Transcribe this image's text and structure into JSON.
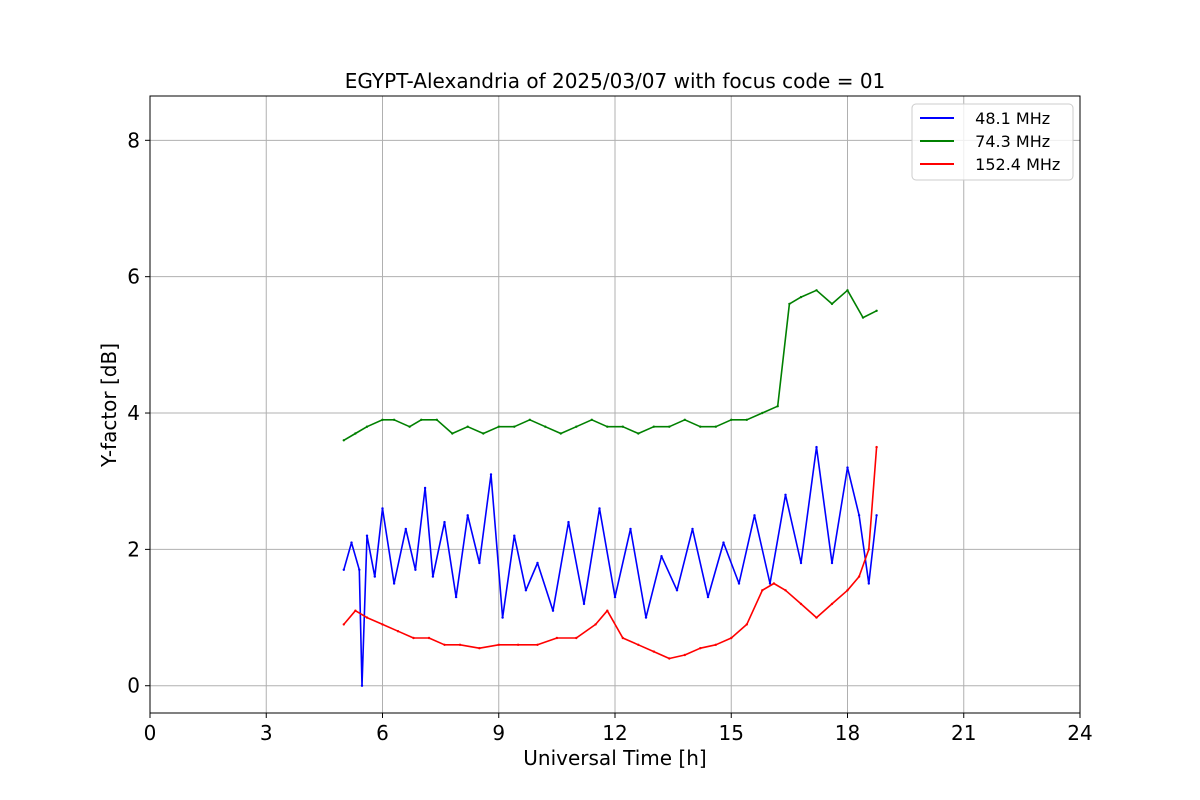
{
  "chart_data": {
    "type": "line",
    "title": "EGYPT-Alexandria of 2025/03/07 with focus code = 01",
    "xlabel": "Universal Time [h]",
    "ylabel": "Y-factor [dB]",
    "xlim": [
      0,
      24
    ],
    "ylim": [
      -0.4,
      8.65
    ],
    "xticks": [
      "0",
      "3",
      "6",
      "9",
      "12",
      "15",
      "18",
      "21",
      "24"
    ],
    "yticks": [
      "0",
      "2",
      "4",
      "6",
      "8"
    ],
    "grid": true,
    "legend_position": "top-right",
    "series": [
      {
        "name": "  48.1 MHz",
        "color": "#0000ff",
        "x": [
          5.0,
          5.2,
          5.4,
          5.47,
          5.6,
          5.8,
          6.0,
          6.3,
          6.6,
          6.85,
          7.1,
          7.3,
          7.6,
          7.9,
          8.2,
          8.5,
          8.8,
          9.1,
          9.4,
          9.7,
          10.0,
          10.4,
          10.8,
          11.2,
          11.6,
          12.0,
          12.4,
          12.8,
          13.2,
          13.6,
          14.0,
          14.4,
          14.8,
          15.2,
          15.6,
          16.0,
          16.4,
          16.8,
          17.2,
          17.6,
          18.0,
          18.3,
          18.55,
          18.75
        ],
        "y": [
          1.7,
          2.1,
          1.7,
          0.0,
          2.2,
          1.6,
          2.6,
          1.5,
          2.3,
          1.7,
          2.9,
          1.6,
          2.4,
          1.3,
          2.5,
          1.8,
          3.1,
          1.0,
          2.2,
          1.4,
          1.8,
          1.1,
          2.4,
          1.2,
          2.6,
          1.3,
          2.3,
          1.0,
          1.9,
          1.4,
          2.3,
          1.3,
          2.1,
          1.5,
          2.5,
          1.5,
          2.8,
          1.8,
          3.5,
          1.8,
          3.2,
          2.5,
          1.5,
          2.5
        ]
      },
      {
        "name": "  74.3 MHz",
        "color": "#008000",
        "x": [
          5.0,
          5.3,
          5.6,
          6.0,
          6.3,
          6.7,
          7.0,
          7.4,
          7.8,
          8.2,
          8.6,
          9.0,
          9.4,
          9.8,
          10.2,
          10.6,
          11.0,
          11.4,
          11.8,
          12.2,
          12.6,
          13.0,
          13.4,
          13.8,
          14.2,
          14.6,
          15.0,
          15.4,
          15.8,
          16.2,
          16.5,
          16.8,
          17.2,
          17.6,
          18.0,
          18.4,
          18.75
        ],
        "y": [
          3.6,
          3.7,
          3.8,
          3.9,
          3.9,
          3.8,
          3.9,
          3.9,
          3.7,
          3.8,
          3.7,
          3.8,
          3.8,
          3.9,
          3.8,
          3.7,
          3.8,
          3.9,
          3.8,
          3.8,
          3.7,
          3.8,
          3.8,
          3.9,
          3.8,
          3.8,
          3.9,
          3.9,
          4.0,
          4.1,
          5.6,
          5.7,
          5.8,
          5.6,
          5.8,
          5.4,
          5.5
        ]
      },
      {
        "name": "  152.4 MHz",
        "color": "#ff0000",
        "x": [
          5.0,
          5.3,
          5.6,
          6.0,
          6.4,
          6.8,
          7.2,
          7.6,
          8.0,
          8.5,
          9.0,
          9.5,
          10.0,
          10.5,
          11.0,
          11.5,
          11.8,
          12.2,
          12.6,
          13.0,
          13.4,
          13.8,
          14.2,
          14.6,
          15.0,
          15.4,
          15.8,
          16.1,
          16.4,
          16.8,
          17.2,
          17.6,
          18.0,
          18.3,
          18.55,
          18.75
        ],
        "y": [
          0.9,
          1.1,
          1.0,
          0.9,
          0.8,
          0.7,
          0.7,
          0.6,
          0.6,
          0.55,
          0.6,
          0.6,
          0.6,
          0.7,
          0.7,
          0.9,
          1.1,
          0.7,
          0.6,
          0.5,
          0.4,
          0.45,
          0.55,
          0.6,
          0.7,
          0.9,
          1.4,
          1.5,
          1.4,
          1.2,
          1.0,
          1.2,
          1.4,
          1.6,
          2.0,
          3.5
        ]
      }
    ]
  }
}
